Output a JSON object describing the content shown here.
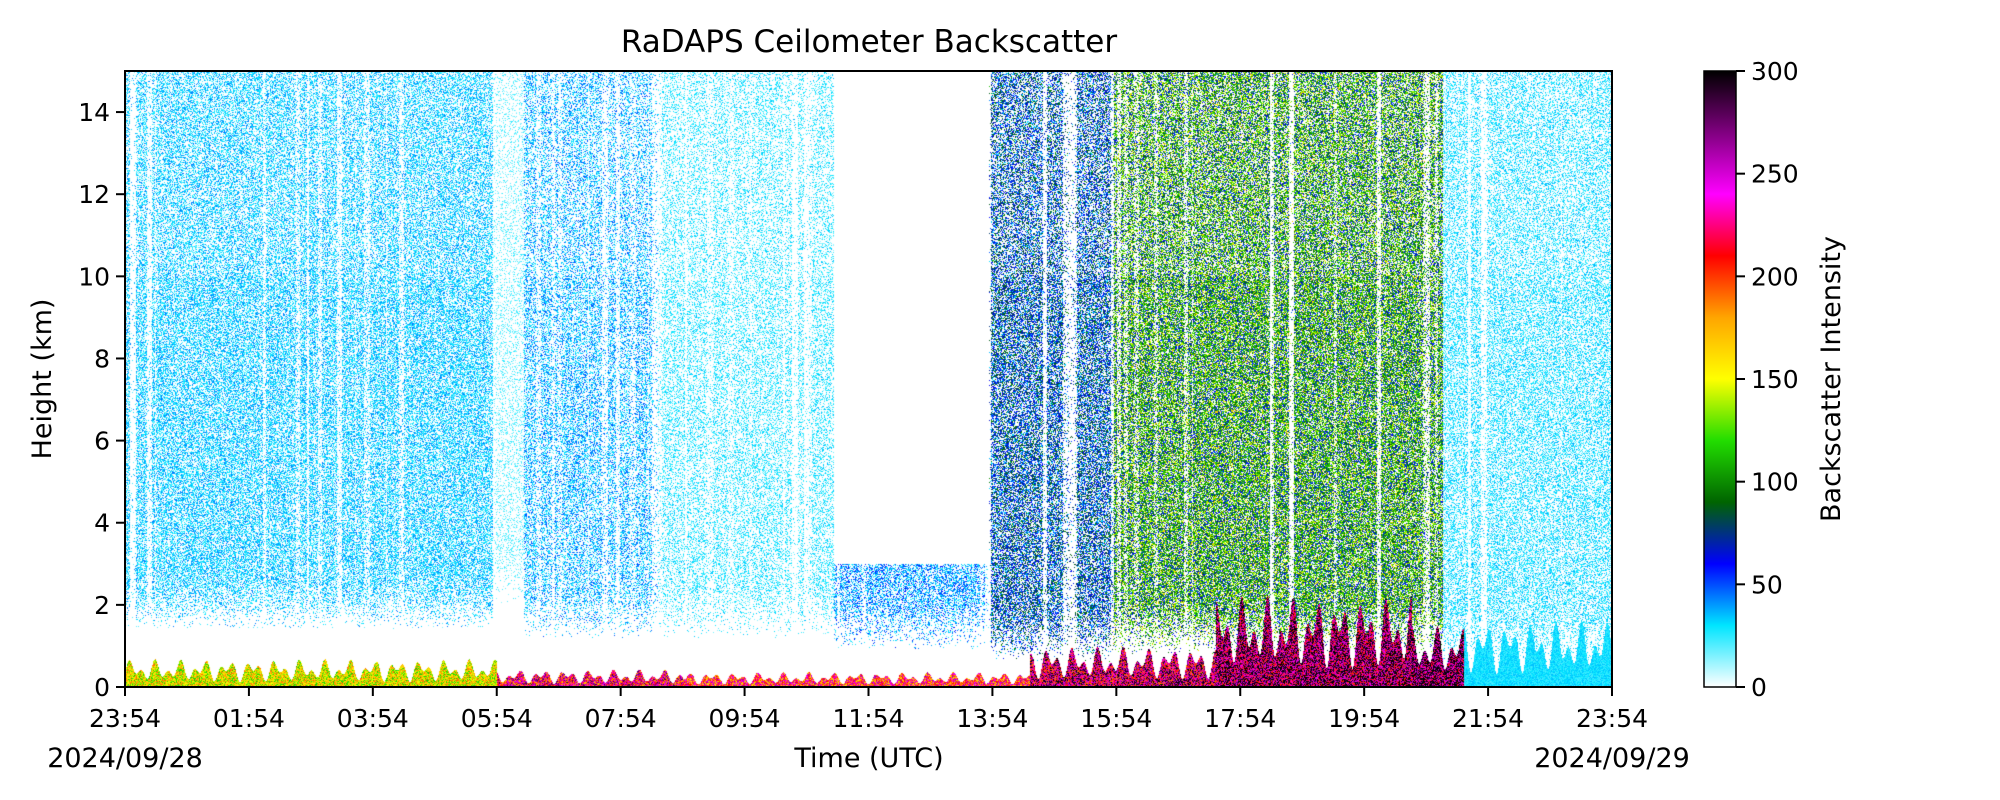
{
  "chart_data": {
    "type": "heatmap",
    "title": "RaDAPS Ceilometer Backscatter",
    "xlabel": "Time (UTC)",
    "ylabel": "Height (km)",
    "x_ticks": [
      "23:54",
      "01:54",
      "03:54",
      "05:54",
      "07:54",
      "09:54",
      "11:54",
      "13:54",
      "15:54",
      "17:54",
      "19:54",
      "21:54",
      "23:54"
    ],
    "x_range": [
      "2024-09-28T23:54",
      "2024-09-29T23:54"
    ],
    "start_date": "2024/09/28",
    "end_date": "2024/09/29",
    "y_ticks": [
      0,
      2,
      4,
      6,
      8,
      10,
      12,
      14
    ],
    "ylim": [
      0,
      15
    ],
    "colorbar": {
      "label": "Backscatter Intensity",
      "range": [
        0,
        300
      ],
      "ticks": [
        0,
        50,
        100,
        150,
        200,
        250,
        300
      ],
      "colors": [
        "#ffffff",
        "#00e5ff",
        "#0000ff",
        "#006400",
        "#22dd00",
        "#ffff00",
        "#ffa500",
        "#ff0000",
        "#ff00ff",
        "#800080",
        "#000000"
      ]
    },
    "grid": false,
    "segments": [
      {
        "start": "23:54",
        "end": "05:50",
        "noise_top_km": 15,
        "clear_below_km": 1.4,
        "level": 35,
        "density": 0.55
      },
      {
        "start": "05:50",
        "end": "06:20",
        "noise_top_km": 15,
        "clear_below_km": 2.0,
        "level": 20,
        "density": 0.25
      },
      {
        "start": "06:20",
        "end": "08:30",
        "noise_top_km": 15,
        "clear_below_km": 1.2,
        "level": 40,
        "density": 0.45
      },
      {
        "start": "08:30",
        "end": "11:20",
        "noise_top_km": 15,
        "clear_below_km": 1.2,
        "level": 28,
        "density": 0.35
      },
      {
        "start": "11:20",
        "end": "13:50",
        "noise_top_km": 3.0,
        "clear_below_km": 0.9,
        "level": 45,
        "density": 0.5
      },
      {
        "start": "13:50",
        "end": "15:50",
        "noise_top_km": 15,
        "clear_below_km": 0.6,
        "level": 70,
        "density": 0.6
      },
      {
        "start": "15:50",
        "end": "21:10",
        "noise_top_km": 15,
        "clear_below_km": 0.8,
        "level": 110,
        "density": 0.75
      },
      {
        "start": "21:10",
        "end": "23:54",
        "noise_top_km": 15,
        "clear_below_km": 0.5,
        "level": 30,
        "density": 0.45
      }
    ],
    "low_layer": [
      {
        "start": "23:54",
        "end": "05:54",
        "top_km": 0.55,
        "level": 160
      },
      {
        "start": "05:54",
        "end": "08:54",
        "top_km": 0.35,
        "level": 240
      },
      {
        "start": "08:54",
        "end": "14:30",
        "top_km": 0.3,
        "level": 220
      },
      {
        "start": "14:30",
        "end": "17:30",
        "top_km": 0.8,
        "level": 260
      },
      {
        "start": "17:30",
        "end": "20:40",
        "top_km": 1.8,
        "level": 280
      },
      {
        "start": "20:40",
        "end": "21:30",
        "top_km": 1.2,
        "level": 290
      },
      {
        "start": "21:30",
        "end": "23:54",
        "top_km": 1.3,
        "level": 30
      }
    ]
  }
}
